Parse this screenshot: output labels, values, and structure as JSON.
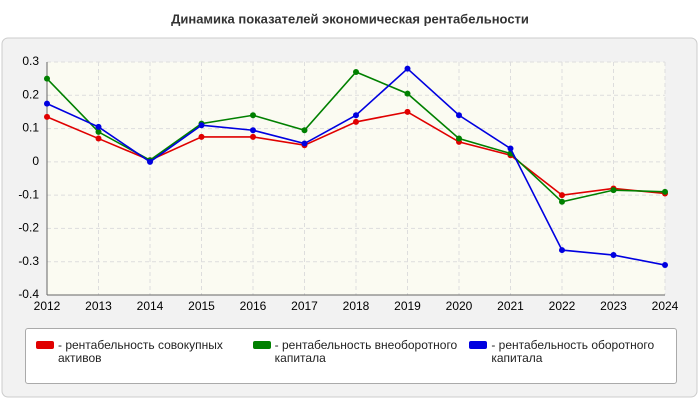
{
  "chart_data": {
    "type": "line",
    "title": "Динамика показателей экономическая рентабельности",
    "categories": [
      "2012",
      "2013",
      "2014",
      "2015",
      "2016",
      "2017",
      "2018",
      "2019",
      "2020",
      "2021",
      "2022",
      "2023",
      "2024"
    ],
    "series": [
      {
        "name": "- рентабельность совокупных активов",
        "color": "#e00000",
        "values": [
          0.135,
          0.07,
          0.005,
          0.075,
          0.075,
          0.05,
          0.12,
          0.15,
          0.06,
          0.02,
          -0.1,
          -0.08,
          -0.095
        ]
      },
      {
        "name": "- рентабельность внеоборотного капитала",
        "color": "#008000",
        "values": [
          0.25,
          0.09,
          0.005,
          0.115,
          0.14,
          0.095,
          0.27,
          0.205,
          0.07,
          0.025,
          -0.12,
          -0.085,
          -0.09
        ]
      },
      {
        "name": "- рентабельность оборотного капитала",
        "color": "#0000e0",
        "values": [
          0.175,
          0.105,
          0.0,
          0.11,
          0.095,
          0.055,
          0.14,
          0.28,
          0.14,
          0.04,
          -0.265,
          -0.28,
          -0.31
        ]
      }
    ],
    "ylim": [
      -0.4,
      0.3
    ],
    "yticks": [
      0.3,
      0.2,
      0.1,
      0,
      -0.1,
      -0.2,
      -0.3,
      -0.4
    ],
    "grid": true
  }
}
